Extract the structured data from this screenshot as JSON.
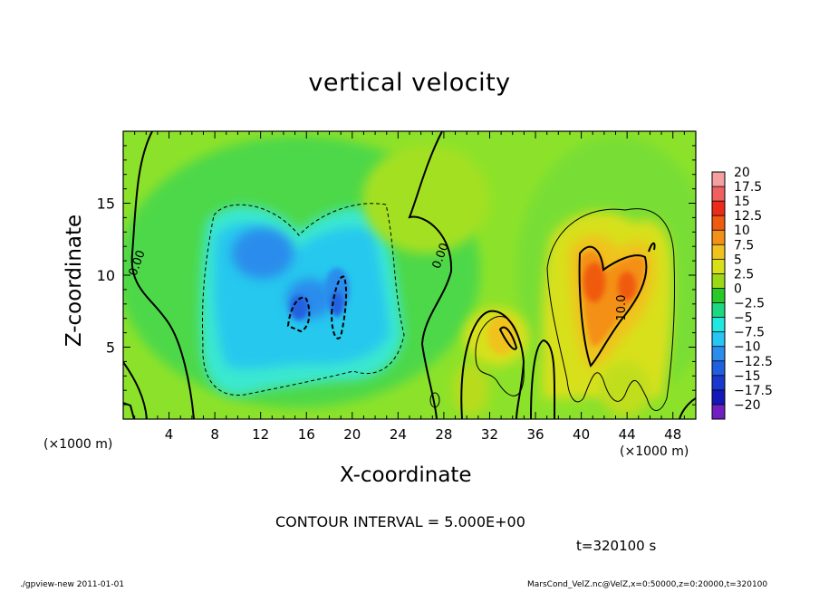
{
  "chart_data": {
    "type": "heatmap",
    "title": "vertical velocity",
    "xlabel": "X-coordinate",
    "ylabel": "Z-coordinate",
    "x_unit_label": "(×1000 m)",
    "y_unit_label": "(×1000 m)",
    "xlim": [
      0,
      50
    ],
    "ylim": [
      0,
      20
    ],
    "x_ticks": [
      4,
      8,
      12,
      16,
      20,
      24,
      28,
      32,
      36,
      40,
      44,
      48
    ],
    "y_ticks": [
      5,
      10,
      15
    ],
    "colorbar": {
      "levels": [
        20,
        17.5,
        15,
        12.5,
        10,
        7.5,
        5,
        2.5,
        0,
        -2.5,
        -5,
        -7.5,
        -10,
        -12.5,
        -15,
        -17.5,
        -20
      ],
      "labels": [
        "20",
        "17.5",
        "15",
        "12.5",
        "10",
        "7.5",
        "5",
        "2.5",
        "0",
        "−2.5",
        "−5",
        "−7.5",
        "−10",
        "−12.5",
        "−15",
        "−17.5",
        "−20"
      ],
      "colors": [
        "#f4a0a0",
        "#f06060",
        "#ec2a1a",
        "#f05a10",
        "#f49018",
        "#f0c21e",
        "#d8e01a",
        "#9ad818",
        "#28c828",
        "#1cd880",
        "#1ee8e0",
        "#28c4f4",
        "#2a8cec",
        "#2060e0",
        "#1a38d0",
        "#1418b8",
        "#7020c0"
      ]
    },
    "contour_labels": [
      "0.00",
      "0.00",
      "10.0"
    ],
    "contour_interval_text": "CONTOUR INTERVAL = 5.000E+00",
    "time_text": "t=320100 s",
    "features": [
      {
        "kind": "downdraft",
        "x": 15,
        "z": 11,
        "value": -7.5
      },
      {
        "kind": "downdraft",
        "x": 16,
        "z": 8,
        "value": -10
      },
      {
        "kind": "downdraft",
        "x": 19,
        "z": 8.5,
        "value": -10
      },
      {
        "kind": "updraft",
        "x": 42,
        "z": 9,
        "value": 12.5
      },
      {
        "kind": "updraft",
        "x": 45,
        "z": 11,
        "value": 7.5
      },
      {
        "kind": "updraft",
        "x": 33,
        "z": 6.5,
        "value": 7.5
      }
    ]
  },
  "footer": {
    "left": "./gpview-new   2011-01-01",
    "right": "MarsCond_VelZ.nc@VelZ,x=0:50000,z=0:20000,t=320100"
  }
}
